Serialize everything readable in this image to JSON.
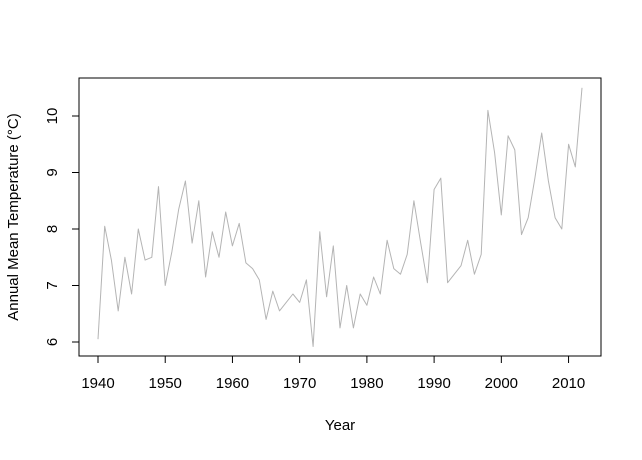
{
  "chart_data": {
    "type": "line",
    "title": "",
    "xlabel": "Year",
    "ylabel": "Annual Mean Temperature (°C)",
    "xlim": [
      1940,
      2012
    ],
    "ylim": [
      5.9,
      10.5
    ],
    "x_ticks": [
      1940,
      1950,
      1960,
      1970,
      1980,
      1990,
      2000,
      2010
    ],
    "y_ticks": [
      6,
      7,
      8,
      9,
      10
    ],
    "grid": false,
    "series": [
      {
        "color": "#b4b4b4",
        "x": [
          1940,
          1941,
          1942,
          1943,
          1944,
          1945,
          1946,
          1947,
          1948,
          1949,
          1950,
          1951,
          1952,
          1953,
          1954,
          1955,
          1956,
          1957,
          1958,
          1959,
          1960,
          1961,
          1962,
          1963,
          1964,
          1965,
          1966,
          1967,
          1968,
          1969,
          1970,
          1971,
          1972,
          1973,
          1974,
          1975,
          1976,
          1977,
          1978,
          1979,
          1980,
          1981,
          1982,
          1983,
          1984,
          1985,
          1986,
          1987,
          1988,
          1989,
          1990,
          1991,
          1992,
          1993,
          1994,
          1995,
          1996,
          1997,
          1998,
          1999,
          2000,
          2001,
          2002,
          2003,
          2004,
          2005,
          2006,
          2007,
          2008,
          2009,
          2010,
          2011,
          2012
        ],
        "values": [
          6.05,
          8.05,
          7.45,
          6.55,
          7.5,
          6.85,
          8.0,
          7.45,
          7.5,
          8.75,
          7.0,
          7.6,
          8.35,
          8.85,
          7.75,
          8.5,
          7.15,
          7.95,
          7.5,
          8.3,
          7.7,
          8.1,
          7.4,
          7.3,
          7.1,
          6.4,
          6.9,
          6.55,
          6.7,
          6.85,
          6.7,
          7.1,
          5.92,
          7.95,
          6.8,
          7.7,
          6.25,
          7.0,
          6.25,
          6.85,
          6.65,
          7.15,
          6.85,
          7.8,
          7.3,
          7.2,
          7.55,
          8.5,
          7.75,
          7.05,
          8.7,
          8.9,
          7.05,
          7.2,
          7.35,
          7.8,
          7.2,
          7.55,
          10.1,
          9.35,
          8.25,
          9.65,
          9.4,
          7.9,
          8.2,
          8.9,
          9.7,
          8.85,
          8.2,
          8.0,
          9.5,
          9.1,
          10.5
        ]
      }
    ]
  }
}
